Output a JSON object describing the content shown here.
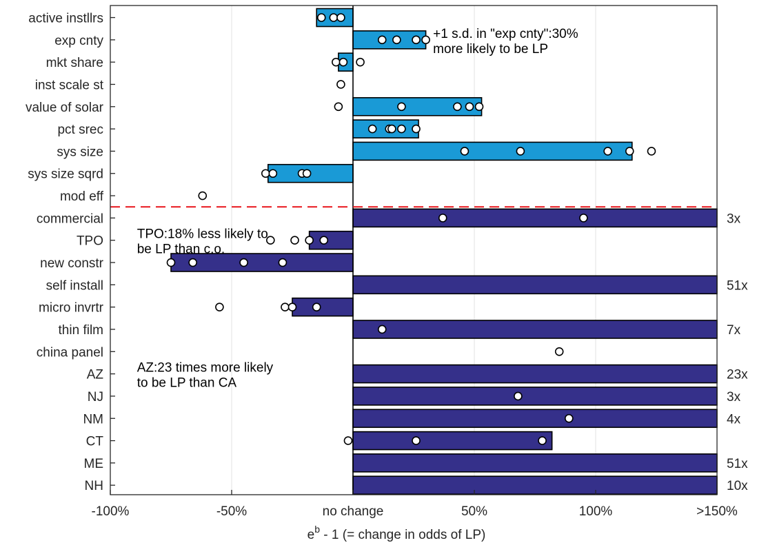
{
  "chart_data": {
    "type": "bar",
    "orientation": "horizontal",
    "xlabel": "e^b - 1 (= change in odds of LP)",
    "xlabel_base": "e",
    "xlabel_sup": "b",
    "xlabel_rest": " - 1 (= change in odds of LP)",
    "xlim": [
      -100,
      150
    ],
    "x_ticks": [
      {
        "value": -100,
        "label": "-100%"
      },
      {
        "value": -50,
        "label": "-50%"
      },
      {
        "value": 0,
        "label": "no change"
      },
      {
        "value": 50,
        "label": "50%"
      },
      {
        "value": 100,
        "label": "100%"
      },
      {
        "value": 150,
        "label": ">150%"
      }
    ],
    "grid": true,
    "colors": {
      "group1": "#1a9ad6",
      "group2": "#35308a",
      "divider": "#e8141a"
    },
    "divider_after_index": 8,
    "categories": [
      {
        "label": "active instllrs",
        "value": -15,
        "group": 1,
        "points": [
          -13,
          -8,
          -5
        ],
        "mult": ""
      },
      {
        "label": "exp cnty",
        "value": 30,
        "group": 1,
        "points": [
          12,
          18,
          26,
          30
        ],
        "mult": ""
      },
      {
        "label": "mkt share",
        "value": -6,
        "group": 1,
        "points": [
          -7,
          -4,
          3
        ],
        "mult": ""
      },
      {
        "label": "inst scale st",
        "value": 0,
        "group": 1,
        "points": [
          -5
        ],
        "mult": ""
      },
      {
        "label": "value of solar",
        "value": 53,
        "group": 1,
        "points": [
          -6,
          20,
          43,
          48,
          52
        ],
        "mult": ""
      },
      {
        "label": "pct srec",
        "value": 27,
        "group": 1,
        "points": [
          8,
          15,
          16,
          20,
          26
        ],
        "mult": ""
      },
      {
        "label": "sys size",
        "value": 115,
        "group": 1,
        "points": [
          46,
          69,
          105,
          114,
          123
        ],
        "mult": ""
      },
      {
        "label": "sys size sqrd",
        "value": -35,
        "group": 1,
        "points": [
          -36,
          -33,
          -21,
          -19
        ],
        "mult": ""
      },
      {
        "label": "mod eff",
        "value": 0,
        "group": 1,
        "points": [
          -62
        ],
        "mult": ""
      },
      {
        "label": "commercial",
        "value": 150,
        "group": 2,
        "points": [
          37,
          95
        ],
        "mult": "3x"
      },
      {
        "label": "TPO",
        "value": -18,
        "group": 2,
        "points": [
          -34,
          -24,
          -18,
          -12
        ],
        "mult": ""
      },
      {
        "label": "new constr",
        "value": -75,
        "group": 2,
        "points": [
          -75,
          -66,
          -45,
          -29
        ],
        "mult": ""
      },
      {
        "label": "self install",
        "value": 150,
        "group": 2,
        "points": [],
        "mult": "51x"
      },
      {
        "label": "micro invrtr",
        "value": -25,
        "group": 2,
        "points": [
          -55,
          -28,
          -25,
          -15
        ],
        "mult": ""
      },
      {
        "label": "thin film",
        "value": 150,
        "group": 2,
        "points": [
          12
        ],
        "mult": "7x"
      },
      {
        "label": "china panel",
        "value": 0,
        "group": 2,
        "points": [
          85
        ],
        "mult": ""
      },
      {
        "label": "AZ",
        "value": 150,
        "group": 2,
        "points": [],
        "mult": "23x"
      },
      {
        "label": "NJ",
        "value": 150,
        "group": 2,
        "points": [
          68
        ],
        "mult": "3x"
      },
      {
        "label": "NM",
        "value": 150,
        "group": 2,
        "points": [
          89
        ],
        "mult": "4x"
      },
      {
        "label": "CT",
        "value": 82,
        "group": 2,
        "points": [
          -2,
          26,
          78
        ],
        "mult": ""
      },
      {
        "label": "ME",
        "value": 150,
        "group": 2,
        "points": [],
        "mult": "51x"
      },
      {
        "label": "NH",
        "value": 150,
        "group": 2,
        "points": [],
        "mult": "10x"
      }
    ],
    "annotations": [
      {
        "anchor_value": 33,
        "anchor_row": 1,
        "lines": [
          "+1 s.d. in \"exp cnty\":30%",
          "more likely to be LP"
        ]
      },
      {
        "anchor_value": -89,
        "anchor_row": 10,
        "lines": [
          "TPO:18% less likely to",
          "be LP than c.o."
        ]
      },
      {
        "anchor_value": -89,
        "anchor_row": 16,
        "lines": [
          "AZ:23 times more likely",
          "to be LP than CA"
        ]
      }
    ]
  }
}
